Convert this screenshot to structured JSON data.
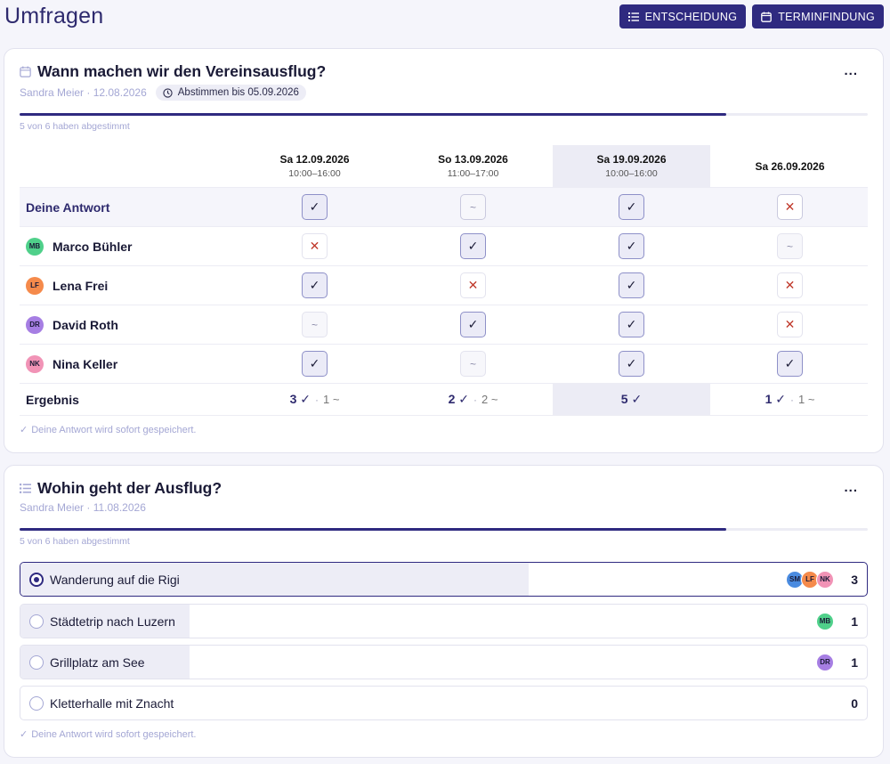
{
  "page": {
    "title": "Umfragen"
  },
  "actions": {
    "decision_label": "ENTSCHEIDUNG",
    "scheduling_label": "TERMINFINDUNG"
  },
  "poll1": {
    "title": "Wann machen wir den Vereinsausflug?",
    "meta": "Sandra Meier · 12.08.2026",
    "deadline": "Abstimmen bis 05.09.2026",
    "progress_text": "5 von 6 haben abgestimmt",
    "progress_fraction": 0.833,
    "more": "...",
    "dates": [
      {
        "date": "Sa 12.09.2026",
        "time": "10:00–16:00"
      },
      {
        "date": "So 13.09.2026",
        "time": "11:00–17:00"
      },
      {
        "date": "Sa 19.09.2026",
        "time": "10:00–16:00"
      },
      {
        "date": "Sa 26.09.2026",
        "time": ""
      }
    ],
    "highlight_column": 2,
    "my_answer": {
      "label": "Deine Antwort",
      "votes": [
        "yes",
        "maybe",
        "yes",
        "no"
      ]
    },
    "participants": [
      {
        "name": "Marco Bühler",
        "initials": "MB",
        "color": "#4fd08a",
        "votes": [
          "no",
          "yes",
          "yes",
          "maybe"
        ]
      },
      {
        "name": "Lena Frei",
        "initials": "LF",
        "color": "#f58a4b",
        "votes": [
          "yes",
          "no",
          "yes",
          "no"
        ]
      },
      {
        "name": "David Roth",
        "initials": "DR",
        "color": "#a67ee3",
        "votes": [
          "maybe",
          "yes",
          "yes",
          "no"
        ]
      },
      {
        "name": "Nina Keller",
        "initials": "NK",
        "color": "#f193b6",
        "votes": [
          "yes",
          "maybe",
          "yes",
          "yes"
        ]
      }
    ],
    "result_label": "Ergebnis",
    "results": [
      {
        "yes": "3 ✓",
        "maybe": "1 ~"
      },
      {
        "yes": "2 ✓",
        "maybe": "2 ~"
      },
      {
        "yes": "5 ✓",
        "maybe": ""
      },
      {
        "yes": "1 ✓",
        "maybe": "1 ~"
      }
    ],
    "saved_note": "Deine Antwort wird sofort gespeichert."
  },
  "poll2": {
    "title": "Wohin geht der Ausflug?",
    "meta": "Sandra Meier · 11.08.2026",
    "progress_text": "5 von 6 haben abgestimmt",
    "progress_fraction": 0.833,
    "more": "...",
    "options": [
      {
        "label": "Wanderung auf die Rigi",
        "count": "3",
        "fraction": 0.6,
        "selected": true,
        "voters": [
          {
            "initials": "SM",
            "color": "#4a8be0"
          },
          {
            "initials": "LF",
            "color": "#f58a4b"
          },
          {
            "initials": "NK",
            "color": "#f193b6"
          }
        ]
      },
      {
        "label": "Städtetrip nach Luzern",
        "count": "1",
        "fraction": 0.2,
        "selected": false,
        "voters": [
          {
            "initials": "MB",
            "color": "#4fd08a"
          }
        ]
      },
      {
        "label": "Grillplatz am See",
        "count": "1",
        "fraction": 0.2,
        "selected": false,
        "voters": [
          {
            "initials": "DR",
            "color": "#a67ee3"
          }
        ]
      },
      {
        "label": "Kletterhalle mit Znacht",
        "count": "0",
        "fraction": 0,
        "selected": false,
        "voters": []
      }
    ],
    "saved_note": "Deine Antwort wird sofort gespeichert."
  },
  "vote_symbols": {
    "yes": "✓",
    "no": "✕",
    "maybe": "~"
  }
}
